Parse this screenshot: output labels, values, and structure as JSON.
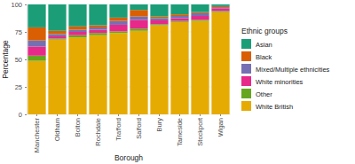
{
  "chart_data": {
    "type": "bar",
    "stacked": true,
    "grid": true,
    "legend": "right",
    "x_label": "Borough",
    "y_label": "Percentage",
    "legend_title": "Ethnic groups",
    "categories": [
      "Manchester",
      "Oldham",
      "Bolton",
      "Rochdale",
      "Trafford",
      "Salford",
      "Bury",
      "Tameside",
      "Stockport",
      "Wigan"
    ],
    "ylim": [
      0,
      100
    ],
    "yticks": [
      0,
      25,
      50,
      75,
      100
    ],
    "series": [
      {
        "name": "Asian",
        "color": "#1b9e77",
        "values": [
          20.9,
          24,
          20,
          19,
          12,
          5,
          11,
          9,
          7,
          1.5
        ]
      },
      {
        "name": "Black",
        "color": "#d95f02",
        "values": [
          11.9,
          3,
          3,
          2,
          3,
          6,
          1.5,
          1.5,
          1,
          1
        ]
      },
      {
        "name": "Mixed/Multiple ethnicities",
        "color": "#7570b3",
        "values": [
          5.5,
          2,
          2,
          2,
          3.5,
          3,
          2,
          2,
          2.5,
          1
        ]
      },
      {
        "name": "White minorities",
        "color": "#e7298a",
        "values": [
          8.3,
          2,
          3,
          3,
          6,
          8,
          3.5,
          2.5,
          3.5,
          2.5
        ]
      },
      {
        "name": "Other",
        "color": "#66a61e",
        "values": [
          4.7,
          1,
          2,
          2,
          1.5,
          2,
          1,
          1,
          1,
          1
        ]
      },
      {
        "name": "White British",
        "color": "#e6ab02",
        "values": [
          48.7,
          68,
          70,
          72,
          74,
          76,
          81,
          84,
          85,
          93
        ]
      }
    ]
  }
}
